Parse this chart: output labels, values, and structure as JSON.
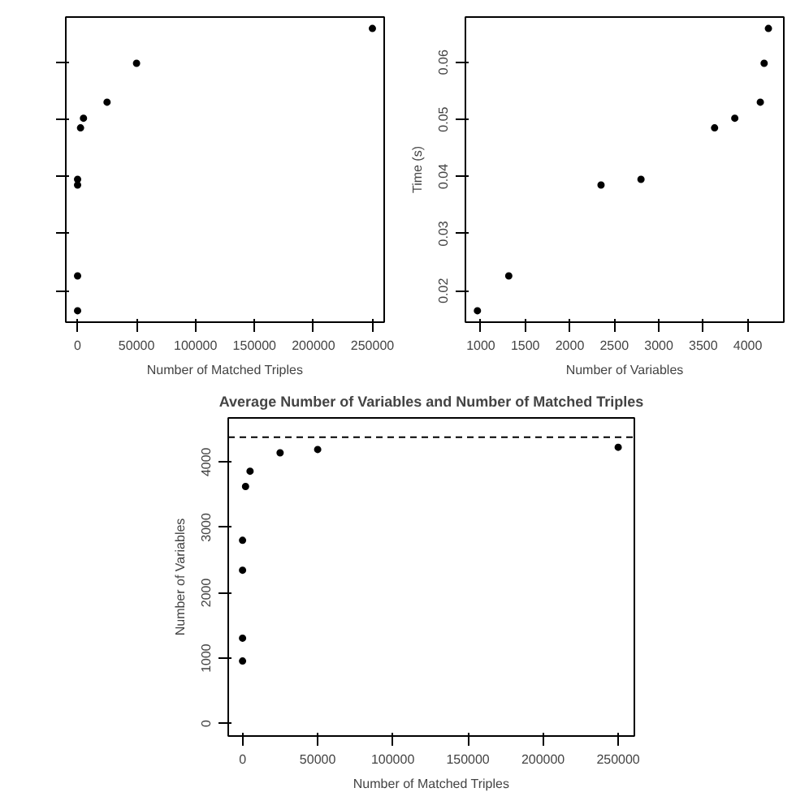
{
  "chart_data": [
    {
      "type": "scatter",
      "xlabel": "Number of Matched Triples",
      "x": [
        0,
        0,
        0,
        0,
        2500,
        5000,
        25000,
        50000,
        250000
      ],
      "series": [
        {
          "color": "#000000",
          "values": [
            0.0165,
            0.0226,
            0.0385,
            0.0395,
            0.0485,
            0.0502,
            0.053,
            0.0598,
            0.0659
          ]
        }
      ],
      "xlim": [
        -10000,
        260000
      ],
      "ylim": [
        0.0145,
        0.0679
      ],
      "xticks": [
        0,
        50000,
        100000,
        150000,
        200000,
        250000
      ],
      "yticks": [
        0.02,
        0.03,
        0.04,
        0.05,
        0.06
      ],
      "tick_labels": "x",
      "marker": "circle",
      "grid": false
    },
    {
      "type": "scatter",
      "xlabel": "Number of Variables",
      "ylabel": "Time (s)",
      "x": [
        962,
        1314,
        2351,
        2800,
        3627,
        3854,
        4141,
        4184,
        4232
      ],
      "series": [
        {
          "color": "#000000",
          "values": [
            0.0165,
            0.0226,
            0.0385,
            0.0395,
            0.0485,
            0.0502,
            0.053,
            0.0598,
            0.0659
          ]
        }
      ],
      "xlim": [
        827,
        4405
      ],
      "ylim": [
        0.0145,
        0.0679
      ],
      "xticks": [
        1000,
        1500,
        2000,
        2500,
        3000,
        3500,
        4000
      ],
      "yticks": [
        0.02,
        0.03,
        0.04,
        0.05,
        0.06
      ],
      "marker": "circle",
      "grid": false
    },
    {
      "type": "scatter",
      "title": "Average Number of Variables and Number of Matched Triples",
      "xlabel": "Number of Matched Triples",
      "ylabel": "Number of Variables",
      "x": [
        0,
        0,
        0,
        0,
        2000,
        5000,
        25000,
        50000,
        250000
      ],
      "series": [
        {
          "color": "#000000",
          "values": [
            956,
            1306,
            2345,
            2802,
            3626,
            3859,
            4141,
            4191,
            4225
          ]
        }
      ],
      "xlim": [
        -9520,
        260760
      ],
      "ylim": [
        -191,
        4674
      ],
      "xticks": [
        0,
        50000,
        100000,
        150000,
        200000,
        250000
      ],
      "yticks": [
        0,
        1000,
        2000,
        3000,
        4000
      ],
      "ref_lines": [
        {
          "axis": "y",
          "value": 4380,
          "color": "#000000",
          "line_style": "dashed"
        }
      ],
      "marker": "circle",
      "grid": false
    }
  ]
}
